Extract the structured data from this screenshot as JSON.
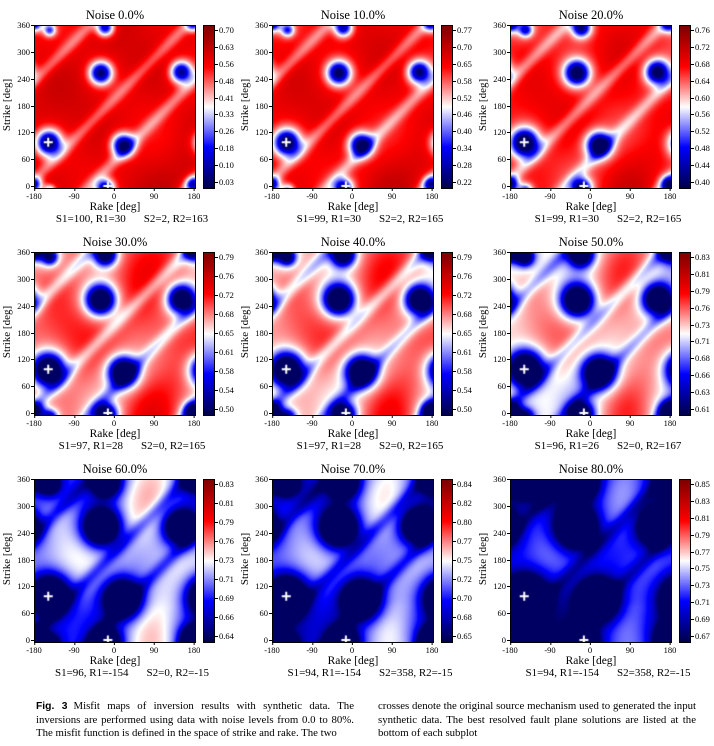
{
  "figure": {
    "caption_label": "Fig. 3",
    "caption_left": "Misfit maps of inversion results with synthetic data. The inversions are performed using data with noise levels from 0.0 to 80%. The misfit function is defined in the space of strike and rake. The two",
    "caption_right": "crosses denote the original source mechanism used to generated the input synthetic data. The best resolved fault plane solutions are listed at the bottom of each subplot"
  },
  "axes": {
    "xlabel": "Rake [deg]",
    "ylabel": "Strike [deg]",
    "xticks": [
      "-180",
      "-90",
      "0",
      "90",
      "180"
    ],
    "yticks": [
      "0",
      "60",
      "120",
      "180",
      "240",
      "300",
      "360"
    ],
    "xrange": [
      -180,
      180
    ],
    "yrange": [
      0,
      360
    ]
  },
  "chart_data": {
    "type": "heatmap",
    "colormap": "seismic",
    "grid": [
      3,
      3
    ],
    "panels": [
      {
        "title": "Noise 0.0%",
        "noise_pct": 0,
        "caption1": "S1=100, R1=30",
        "caption2": "S2=2, R2=163",
        "cbar_ticks": [
          "0.70",
          "0.63",
          "0.56",
          "0.48",
          "0.41",
          "0.33",
          "0.26",
          "0.18",
          "0.10",
          "0.03"
        ],
        "field": {
          "base": 0.8,
          "amp": 1.0,
          "sig": 1.0,
          "spread": 0.0
        }
      },
      {
        "title": "Noise 10.0%",
        "noise_pct": 10,
        "caption1": "S1=99, R1=30",
        "caption2": "S2=2, R2=165",
        "cbar_ticks": [
          "0.77",
          "0.70",
          "0.65",
          "0.58",
          "0.52",
          "0.46",
          "0.40",
          "0.34",
          "0.28",
          "0.22"
        ],
        "field": {
          "base": 0.8,
          "amp": 1.0,
          "sig": 1.05,
          "spread": 0.06
        }
      },
      {
        "title": "Noise 20.0%",
        "noise_pct": 20,
        "caption1": "S1=99, R1=30",
        "caption2": "S2=2, R2=165",
        "cbar_ticks": [
          "0.76",
          "0.72",
          "0.68",
          "0.64",
          "0.60",
          "0.56",
          "0.52",
          "0.48",
          "0.44",
          "0.40"
        ],
        "field": {
          "base": 0.79,
          "amp": 1.05,
          "sig": 1.1,
          "spread": 0.12
        }
      },
      {
        "title": "Noise 30.0%",
        "noise_pct": 30,
        "caption1": "S1=97, R1=28",
        "caption2": "S2=0, R2=165",
        "cbar_ticks": [
          "0.79",
          "0.76",
          "0.72",
          "0.68",
          "0.65",
          "0.61",
          "0.58",
          "0.54",
          "0.50"
        ],
        "field": {
          "base": 0.78,
          "amp": 1.15,
          "sig": 1.25,
          "spread": 0.22
        }
      },
      {
        "title": "Noise 40.0%",
        "noise_pct": 40,
        "caption1": "S1=97, R1=28",
        "caption2": "S2=0, R2=165",
        "cbar_ticks": [
          "0.79",
          "0.76",
          "0.72",
          "0.68",
          "0.65",
          "0.61",
          "0.58",
          "0.54",
          "0.50"
        ],
        "field": {
          "base": 0.78,
          "amp": 1.18,
          "sig": 1.3,
          "spread": 0.27
        }
      },
      {
        "title": "Noise 50.0%",
        "noise_pct": 50,
        "caption1": "S1=96, R1=26",
        "caption2": "S2=0, R2=167",
        "cbar_ticks": [
          "0.83",
          "0.81",
          "0.79",
          "0.76",
          "0.73",
          "0.71",
          "0.68",
          "0.66",
          "0.63",
          "0.61"
        ],
        "field": {
          "base": 0.77,
          "amp": 1.22,
          "sig": 1.35,
          "spread": 0.32
        }
      },
      {
        "title": "Noise 60.0%",
        "noise_pct": 60,
        "caption1": "S1=96, R1=-154",
        "caption2": "S2=0, R2=-15",
        "cbar_ticks": [
          "0.83",
          "0.81",
          "0.79",
          "0.76",
          "0.73",
          "0.71",
          "0.69",
          "0.66",
          "0.64"
        ],
        "field": {
          "base": 0.76,
          "amp": 1.35,
          "sig": 1.5,
          "spread": 0.46
        }
      },
      {
        "title": "Noise 70.0%",
        "noise_pct": 70,
        "caption1": "S1=94, R1=-154",
        "caption2": "S2=358, R2=-15",
        "cbar_ticks": [
          "0.84",
          "0.82",
          "0.80",
          "0.77",
          "0.75",
          "0.72",
          "0.70",
          "0.68",
          "0.65"
        ],
        "field": {
          "base": 0.76,
          "amp": 1.4,
          "sig": 1.55,
          "spread": 0.5
        }
      },
      {
        "title": "Noise 80.0%",
        "noise_pct": 80,
        "caption1": "S1=94, R1=-154",
        "caption2": "S2=358, R2=-15",
        "cbar_ticks": [
          "0.85",
          "0.83",
          "0.81",
          "0.79",
          "0.77",
          "0.75",
          "0.73",
          "0.71",
          "0.69",
          "0.67"
        ],
        "field": {
          "base": 0.75,
          "amp": 1.45,
          "sig": 1.65,
          "spread": 0.55
        }
      }
    ],
    "crosses": [
      {
        "rake": -150,
        "strike": 100
      },
      {
        "rake": -15,
        "strike": 2
      }
    ],
    "minima_approx": [
      {
        "rake": -150,
        "strike": 100,
        "sig": 20,
        "amp": 0.8
      },
      {
        "rake": 18,
        "strike": 95,
        "sig": 18,
        "amp": 0.75
      },
      {
        "rake": -32,
        "strike": 256,
        "sig": 18,
        "amp": 0.75
      },
      {
        "rake": 150,
        "strike": 258,
        "sig": 17,
        "amp": 0.7
      },
      {
        "rake": -22,
        "strike": 358,
        "sig": 14,
        "amp": 0.65
      },
      {
        "rake": -148,
        "strike": 352,
        "sig": 10,
        "amp": 0.45
      },
      {
        "rake": 178,
        "strike": 6,
        "sig": 12,
        "amp": 0.55
      }
    ],
    "diagonal_bands": [
      60,
      200
    ],
    "colors": {
      "max": "#67000d",
      "mid": "#ffffff",
      "min": "#08006b",
      "cross": "#ffffff"
    }
  }
}
